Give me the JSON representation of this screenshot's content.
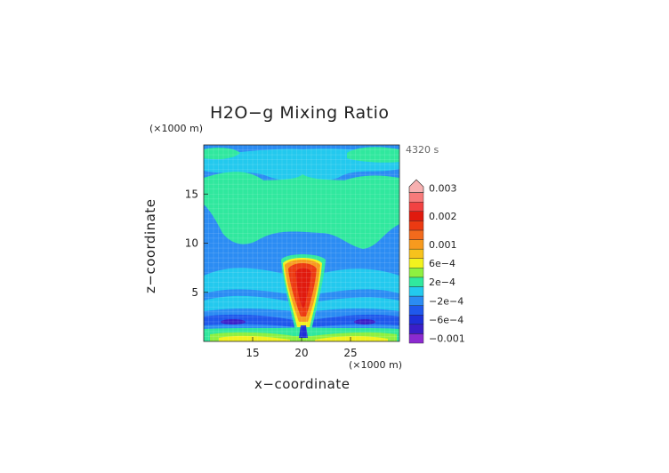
{
  "chart_data": {
    "type": "heatmap",
    "title": "H2O−g Mixing Ratio",
    "time_label": "4320 s",
    "xlabel": "x−coordinate",
    "ylabel": "z−coordinate",
    "x_unit": "(×1000 m)",
    "y_unit": "(×1000 m)",
    "xlim": [
      10,
      30
    ],
    "ylim": [
      0,
      20
    ],
    "x_ticks": [
      15,
      20,
      25
    ],
    "y_ticks": [
      5,
      10,
      15
    ],
    "grid": true,
    "colorbar": {
      "levels": [
        {
          "color": "#8c2ad0",
          "label": "−0.001"
        },
        {
          "color": "#3a1ec8",
          "label": ""
        },
        {
          "color": "#1e2fd8",
          "label": "−6e−4"
        },
        {
          "color": "#1f58ec",
          "label": ""
        },
        {
          "color": "#2b8cf3",
          "label": "−2e−4"
        },
        {
          "color": "#23c9ee",
          "label": ""
        },
        {
          "color": "#30e89e",
          "label": "2e−4"
        },
        {
          "color": "#8ef040",
          "label": ""
        },
        {
          "color": "#f2f21e",
          "label": "6e−4"
        },
        {
          "color": "#f7c21c",
          "label": ""
        },
        {
          "color": "#f79a1e",
          "label": "0.001"
        },
        {
          "color": "#f26a1c",
          "label": ""
        },
        {
          "color": "#ec3a12",
          "label": ""
        },
        {
          "color": "#e01a0e",
          "label": "0.002"
        },
        {
          "color": "#f24242",
          "label": ""
        },
        {
          "color": "#f77a7a",
          "label": ""
        },
        {
          "color": "#f7b0b0",
          "label": "0.003"
        }
      ]
    }
  }
}
